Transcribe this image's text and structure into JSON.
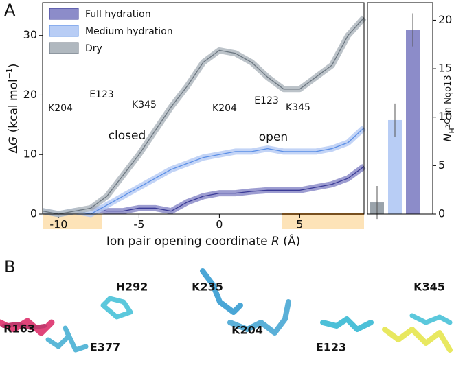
{
  "panel_labels": [
    "A",
    "B"
  ],
  "chart_data": [
    {
      "type": "line",
      "ylabel_parts": [
        "Δ",
        "G",
        " (kcal mol",
        "−1",
        ")"
      ],
      "xlabel_parts": [
        "Ion pair opening coordinate ",
        "R",
        " (Å)"
      ],
      "x": [
        -11,
        -10,
        -9,
        -8,
        -7,
        -6,
        -5,
        -4,
        -3,
        -2,
        -1,
        0,
        1,
        2,
        3,
        4,
        5,
        6,
        7,
        8,
        9
      ],
      "series": [
        {
          "name": "Full hydration",
          "color": "#3a3a96",
          "band_color": "#8c8cc9",
          "values": [
            null,
            null,
            null,
            1,
            0.5,
            0.5,
            1,
            1,
            0.5,
            2,
            3,
            3.5,
            3.5,
            3.8,
            4,
            4,
            4,
            4.5,
            5,
            6,
            8
          ]
        },
        {
          "name": "Medium hydration",
          "color": "#5b8fe6",
          "band_color": "#b8cdf5",
          "values": [
            0.5,
            0,
            0.5,
            0,
            1.5,
            3,
            4.5,
            6,
            7.5,
            8.5,
            9.5,
            10,
            10.5,
            10.5,
            11,
            10.5,
            10.5,
            10.5,
            11,
            12,
            14.5
          ]
        },
        {
          "name": "Dry",
          "color": "#6b7680",
          "band_color": "#b0b8bf",
          "values": [
            0.5,
            0,
            0.5,
            1,
            3,
            6.5,
            10,
            14,
            18,
            21.5,
            25.5,
            27.5,
            27,
            25.5,
            23,
            21,
            21,
            23,
            25,
            30,
            33
          ]
        }
      ],
      "highlight_ranges": [
        [
          -11,
          -7.3
        ],
        [
          3.9,
          9
        ]
      ],
      "highlight_color": "#fde3b8",
      "xlim": [
        -11,
        9
      ],
      "xticks": [
        -10,
        -5,
        0,
        5
      ],
      "ylim": [
        0,
        35.5
      ],
      "yticks": [
        0,
        10,
        20,
        30
      ],
      "annotations": [
        "K204",
        "E123",
        "K345",
        "closed",
        "K204",
        "E123",
        "K345",
        "open"
      ],
      "legend": "upper left"
    },
    {
      "type": "bar",
      "ylabel_parts": [
        "N",
        "H",
        "2",
        "O",
        " in Nqo13"
      ],
      "categories": [
        null,
        null,
        null
      ],
      "values": [
        1.2,
        9.7,
        19
      ],
      "errors": [
        1.7,
        1.7,
        1.7
      ],
      "colors": [
        "#9aa3ab",
        "#b8cdf5",
        "#8c8cc9"
      ],
      "ylim": [
        0,
        21.8
      ],
      "yticks": [
        0,
        5,
        10,
        15,
        20
      ]
    }
  ],
  "structures": {
    "labels": [
      "R163",
      "E377",
      "H292",
      "K235",
      "K204",
      "E123",
      "K345"
    ]
  }
}
